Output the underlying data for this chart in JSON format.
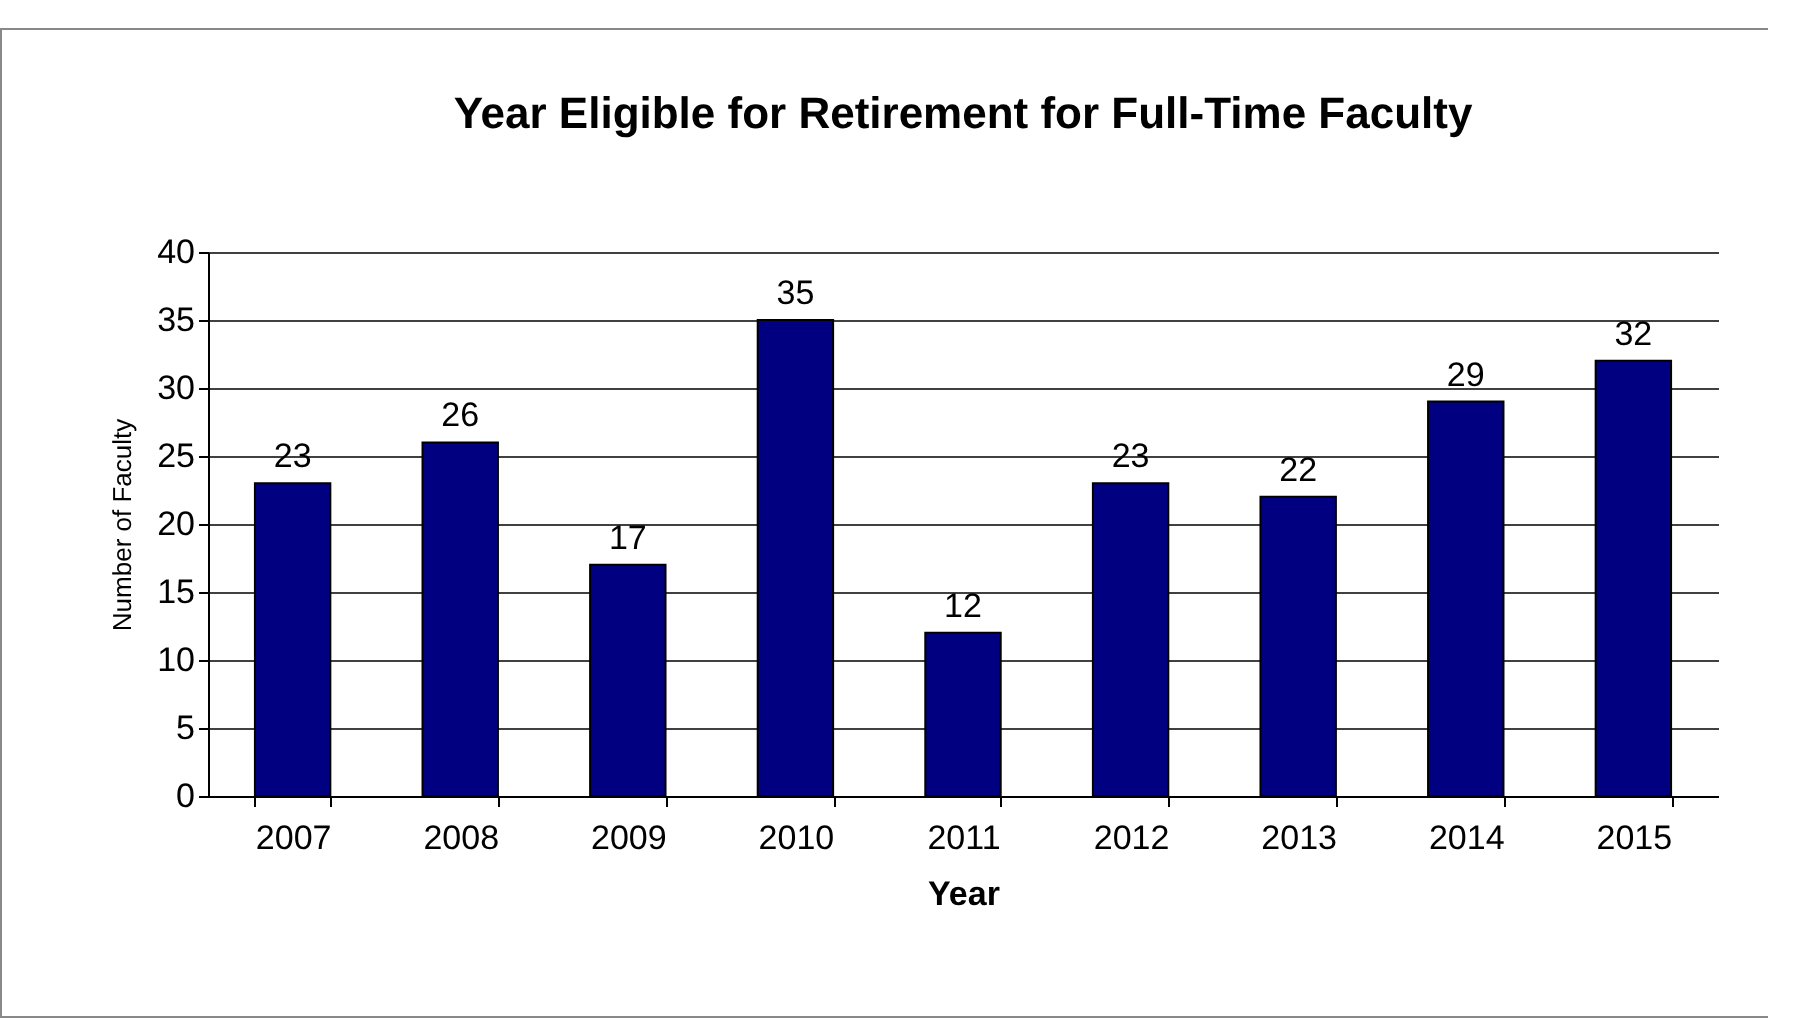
{
  "chart_data": {
    "type": "bar",
    "title": "Year Eligible for Retirement for Full-Time Faculty",
    "xlabel": "Year",
    "ylabel": "Number of Faculty",
    "categories": [
      "2007",
      "2008",
      "2009",
      "2010",
      "2011",
      "2012",
      "2013",
      "2014",
      "2015"
    ],
    "values": [
      23,
      26,
      17,
      35,
      12,
      23,
      22,
      29,
      32
    ],
    "color": "#000080",
    "ylim": [
      0,
      40
    ],
    "yticks": [
      0,
      5,
      10,
      15,
      20,
      25,
      30,
      35,
      40
    ],
    "grid": "y",
    "data_labels": true
  }
}
